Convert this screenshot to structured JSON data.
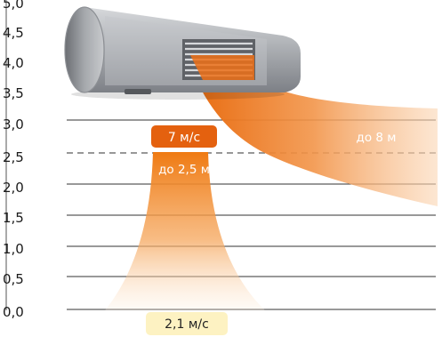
{
  "y_axis": {
    "ticks": [
      "5,0",
      "4,5",
      "4,0",
      "3,5",
      "3,0",
      "2,5",
      "2,0",
      "1,5",
      "1,0",
      "0,5",
      "0,0"
    ]
  },
  "labels": {
    "speed_top": "7 м/с",
    "reach_vertical": "до 2,5 м",
    "reach_horizontal": "до 8 м",
    "speed_bottom": "2,1 м/с"
  },
  "colors": {
    "flow": "#f07d1a",
    "badge": "#e4610f",
    "bottom_badge": "#fdf2c2",
    "gridline": "#333333",
    "dashed_line": "#777777",
    "device_body": "#a9acb1"
  }
}
